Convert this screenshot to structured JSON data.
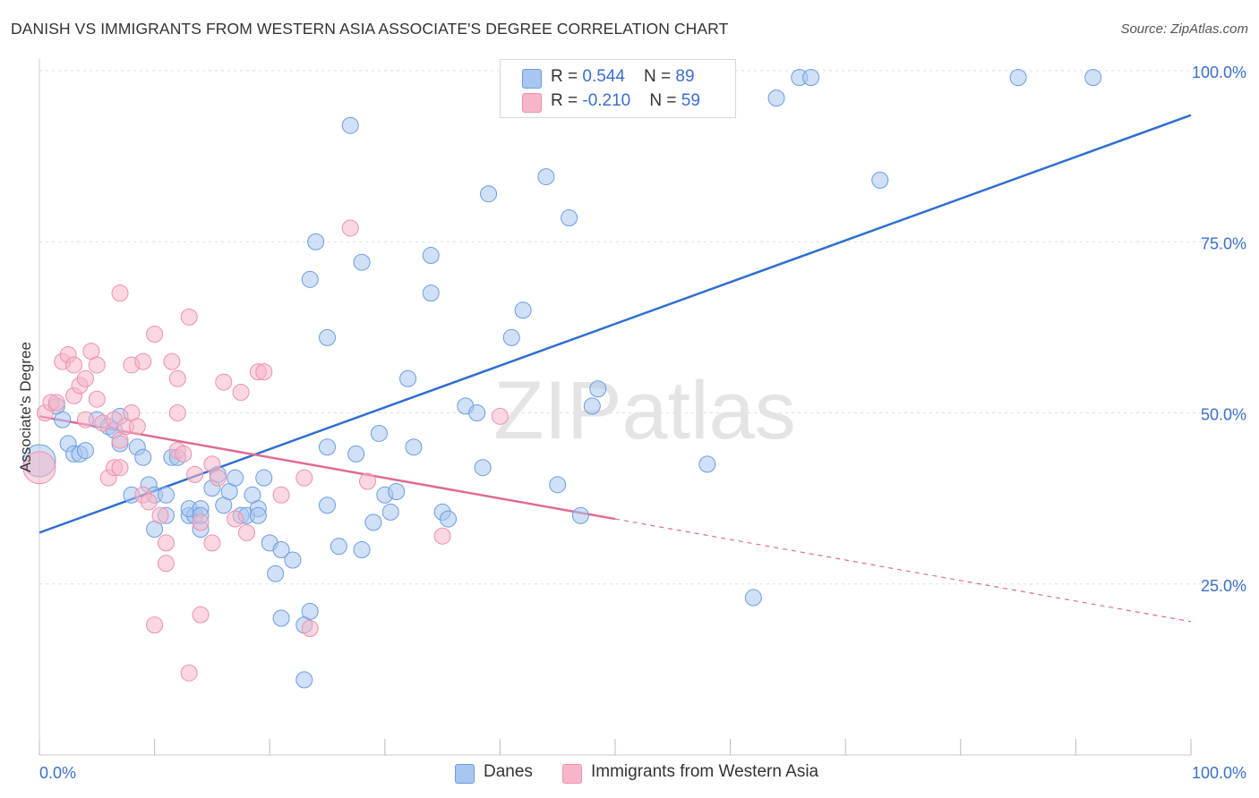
{
  "title": "DANISH VS IMMIGRANTS FROM WESTERN ASIA ASSOCIATE'S DEGREE CORRELATION CHART",
  "source": "Source: ZipAtlas.com",
  "watermark": "ZIPatlas",
  "legend_top": {
    "rows": [
      {
        "r_label": "R = ",
        "r_value": "0.544",
        "n_label": "N = ",
        "n_value": "89",
        "color": "#a9c6f0"
      },
      {
        "r_label": "R = ",
        "r_value": "-0.210",
        "n_label": "N = ",
        "n_value": "59",
        "color": "#f6b6c8"
      }
    ]
  },
  "legend_bottom": {
    "items": [
      {
        "label": "Danes",
        "color": "#a9c6f0"
      },
      {
        "label": "Immigrants from Western Asia",
        "color": "#f6b6c8"
      }
    ]
  },
  "chart_data": {
    "type": "scatter",
    "title": "DANISH VS IMMIGRANTS FROM WESTERN ASIA ASSOCIATE'S DEGREE CORRELATION CHART",
    "xlabel": "",
    "ylabel": "Associate's Degree",
    "xlim": [
      0,
      100
    ],
    "ylim": [
      0,
      102
    ],
    "x_tick_labels": [
      "0.0%",
      "100.0%"
    ],
    "y_tick_labels": [
      "100.0%",
      "75.0%",
      "50.0%",
      "25.0%"
    ],
    "y_ticks": [
      100,
      75,
      50,
      25
    ],
    "grid": true,
    "legend_position": "top-center",
    "series": [
      {
        "name": "Danes",
        "color": "#6b9de0",
        "fill": "#a9c6f0",
        "trend": {
          "x0": 0,
          "y0": 32.5,
          "x1": 100,
          "y1": 93.5,
          "style": "solid",
          "line_color": "#2f6fd0"
        },
        "points": [
          [
            0,
            43
          ],
          [
            1.5,
            51
          ],
          [
            2,
            49
          ],
          [
            2.5,
            45.5
          ],
          [
            3,
            44
          ],
          [
            3.5,
            44
          ],
          [
            4,
            44.5
          ],
          [
            5,
            49
          ],
          [
            6,
            48
          ],
          [
            6.5,
            47.5
          ],
          [
            7,
            45.5
          ],
          [
            7,
            49.5
          ],
          [
            8,
            38
          ],
          [
            8.5,
            45
          ],
          [
            9,
            43.5
          ],
          [
            9.5,
            39.5
          ],
          [
            10,
            33
          ],
          [
            10,
            38
          ],
          [
            11,
            38
          ],
          [
            11,
            35
          ],
          [
            11.5,
            43.5
          ],
          [
            12,
            43.5
          ],
          [
            13,
            35
          ],
          [
            13.5,
            35
          ],
          [
            13,
            36
          ],
          [
            14,
            36
          ],
          [
            14,
            33
          ],
          [
            14,
            35
          ],
          [
            15,
            39
          ],
          [
            15.5,
            41
          ],
          [
            16,
            36.5
          ],
          [
            16.5,
            38.5
          ],
          [
            17,
            40.5
          ],
          [
            17.5,
            35
          ],
          [
            18,
            35
          ],
          [
            18.5,
            38
          ],
          [
            19,
            36
          ],
          [
            19,
            35
          ],
          [
            19.5,
            40.5
          ],
          [
            20,
            31
          ],
          [
            20.5,
            26.5
          ],
          [
            21,
            30
          ],
          [
            21,
            20
          ],
          [
            22,
            28.5
          ],
          [
            23,
            19
          ],
          [
            23,
            11
          ],
          [
            23.5,
            69.5
          ],
          [
            23.5,
            21
          ],
          [
            24,
            75
          ],
          [
            25,
            45
          ],
          [
            25,
            36.5
          ],
          [
            25,
            61
          ],
          [
            26,
            30.5
          ],
          [
            27,
            92
          ],
          [
            27.5,
            44
          ],
          [
            28,
            72
          ],
          [
            28,
            30
          ],
          [
            29,
            34
          ],
          [
            29.5,
            47
          ],
          [
            30,
            38
          ],
          [
            30.5,
            35.5
          ],
          [
            31,
            38.5
          ],
          [
            32,
            55
          ],
          [
            32.5,
            45
          ],
          [
            34,
            73
          ],
          [
            34,
            67.5
          ],
          [
            35,
            35.5
          ],
          [
            35.5,
            34.5
          ],
          [
            37,
            51
          ],
          [
            38,
            50
          ],
          [
            39,
            82
          ],
          [
            38.5,
            42
          ],
          [
            41,
            61
          ],
          [
            42,
            65
          ],
          [
            44,
            84.5
          ],
          [
            45,
            39.5
          ],
          [
            46,
            78.5
          ],
          [
            47,
            35
          ],
          [
            48,
            51
          ],
          [
            48.5,
            53.5
          ],
          [
            58,
            42.5
          ],
          [
            59,
            99
          ],
          [
            62,
            23
          ],
          [
            64,
            96
          ],
          [
            66,
            99
          ],
          [
            67,
            99
          ],
          [
            73,
            84
          ],
          [
            85,
            99
          ],
          [
            91.5,
            99
          ]
        ]
      },
      {
        "name": "Immigrants from Western Asia",
        "color": "#ee90ab",
        "fill": "#f6b6c8",
        "trend": {
          "x0": 0,
          "y0": 49.5,
          "x1": 50,
          "y1": 34.5,
          "x_dash_end": 100,
          "y_dash_end": 19.5,
          "style": "solid-then-dashed",
          "line_color": "#e06a94"
        },
        "points": [
          [
            0,
            42
          ],
          [
            0.5,
            50
          ],
          [
            1,
            51.5
          ],
          [
            1.5,
            51.5
          ],
          [
            2,
            57.5
          ],
          [
            2.5,
            58.5
          ],
          [
            3,
            57
          ],
          [
            3,
            52.5
          ],
          [
            3.5,
            54
          ],
          [
            4,
            49
          ],
          [
            4,
            55
          ],
          [
            4.5,
            59
          ],
          [
            5,
            52
          ],
          [
            5,
            57
          ],
          [
            5.5,
            48.5
          ],
          [
            6,
            40.5
          ],
          [
            6.5,
            42
          ],
          [
            6.5,
            49
          ],
          [
            7,
            42
          ],
          [
            7,
            67.5
          ],
          [
            7,
            46
          ],
          [
            7.5,
            48
          ],
          [
            8,
            57
          ],
          [
            8,
            50
          ],
          [
            8.5,
            48
          ],
          [
            9,
            38
          ],
          [
            9,
            57.5
          ],
          [
            9.5,
            37
          ],
          [
            10,
            61.5
          ],
          [
            10,
            19
          ],
          [
            10.5,
            35
          ],
          [
            11,
            31
          ],
          [
            11,
            28
          ],
          [
            11.5,
            57.5
          ],
          [
            12,
            55
          ],
          [
            12,
            44.5
          ],
          [
            12,
            50
          ],
          [
            12.5,
            44
          ],
          [
            13,
            64
          ],
          [
            13,
            12
          ],
          [
            13.5,
            41
          ],
          [
            14,
            20.5
          ],
          [
            14,
            34
          ],
          [
            15,
            42.5
          ],
          [
            15,
            31
          ],
          [
            15.5,
            40.5
          ],
          [
            16,
            54.5
          ],
          [
            17,
            34.5
          ],
          [
            17.5,
            53
          ],
          [
            18,
            32.5
          ],
          [
            19,
            56
          ],
          [
            19.5,
            56
          ],
          [
            21,
            38
          ],
          [
            23,
            40.5
          ],
          [
            23.5,
            18.5
          ],
          [
            27,
            77
          ],
          [
            28.5,
            40
          ],
          [
            35,
            32
          ],
          [
            40,
            49.5
          ]
        ]
      }
    ]
  }
}
